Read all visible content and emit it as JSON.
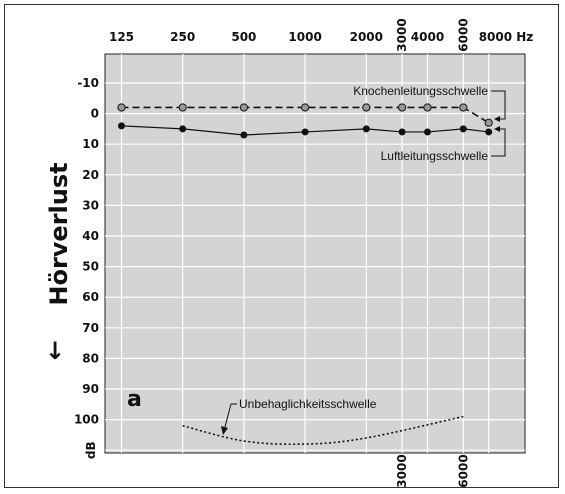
{
  "chart_data": {
    "type": "line",
    "x_scale": "log",
    "x_ticks": [
      "125",
      "250",
      "500",
      "1000",
      "2000",
      "3000",
      "4000",
      "6000",
      "8000 Hz"
    ],
    "x_ticks_bottom": [
      "3000",
      "6000"
    ],
    "y_ticks": [
      "-10",
      "0",
      "10",
      "20",
      "30",
      "40",
      "50",
      "60",
      "70",
      "80",
      "90",
      "100",
      "dB"
    ],
    "ylim": [
      -20,
      110
    ],
    "y_inverted": true,
    "grid": true,
    "background": "#d4d4d4",
    "ylabel": "Hörverlust",
    "ylabel_arrow": "↓",
    "panel_label": "a",
    "series": [
      {
        "name": "Knochenleitungsschwelle",
        "style": "dashed",
        "marker_color": "#999999",
        "x": [
          125,
          250,
          500,
          1000,
          2000,
          3000,
          4000,
          6000,
          8000
        ],
        "y": [
          -2,
          -2,
          -2,
          -2,
          -2,
          -2,
          -2,
          -2,
          3
        ]
      },
      {
        "name": "Luftleitungsschwelle",
        "style": "solid",
        "marker_color": "#111111",
        "x": [
          125,
          250,
          500,
          1000,
          2000,
          3000,
          4000,
          6000,
          8000
        ],
        "y": [
          4,
          5,
          7,
          6,
          5,
          6,
          6,
          5,
          6
        ]
      },
      {
        "name": "Unbehaglichkeitsschwelle",
        "style": "dotted",
        "marker_color": "",
        "x": [
          250,
          500,
          1000,
          2000,
          6000
        ],
        "y": [
          102,
          107,
          108,
          106,
          99
        ]
      }
    ]
  }
}
